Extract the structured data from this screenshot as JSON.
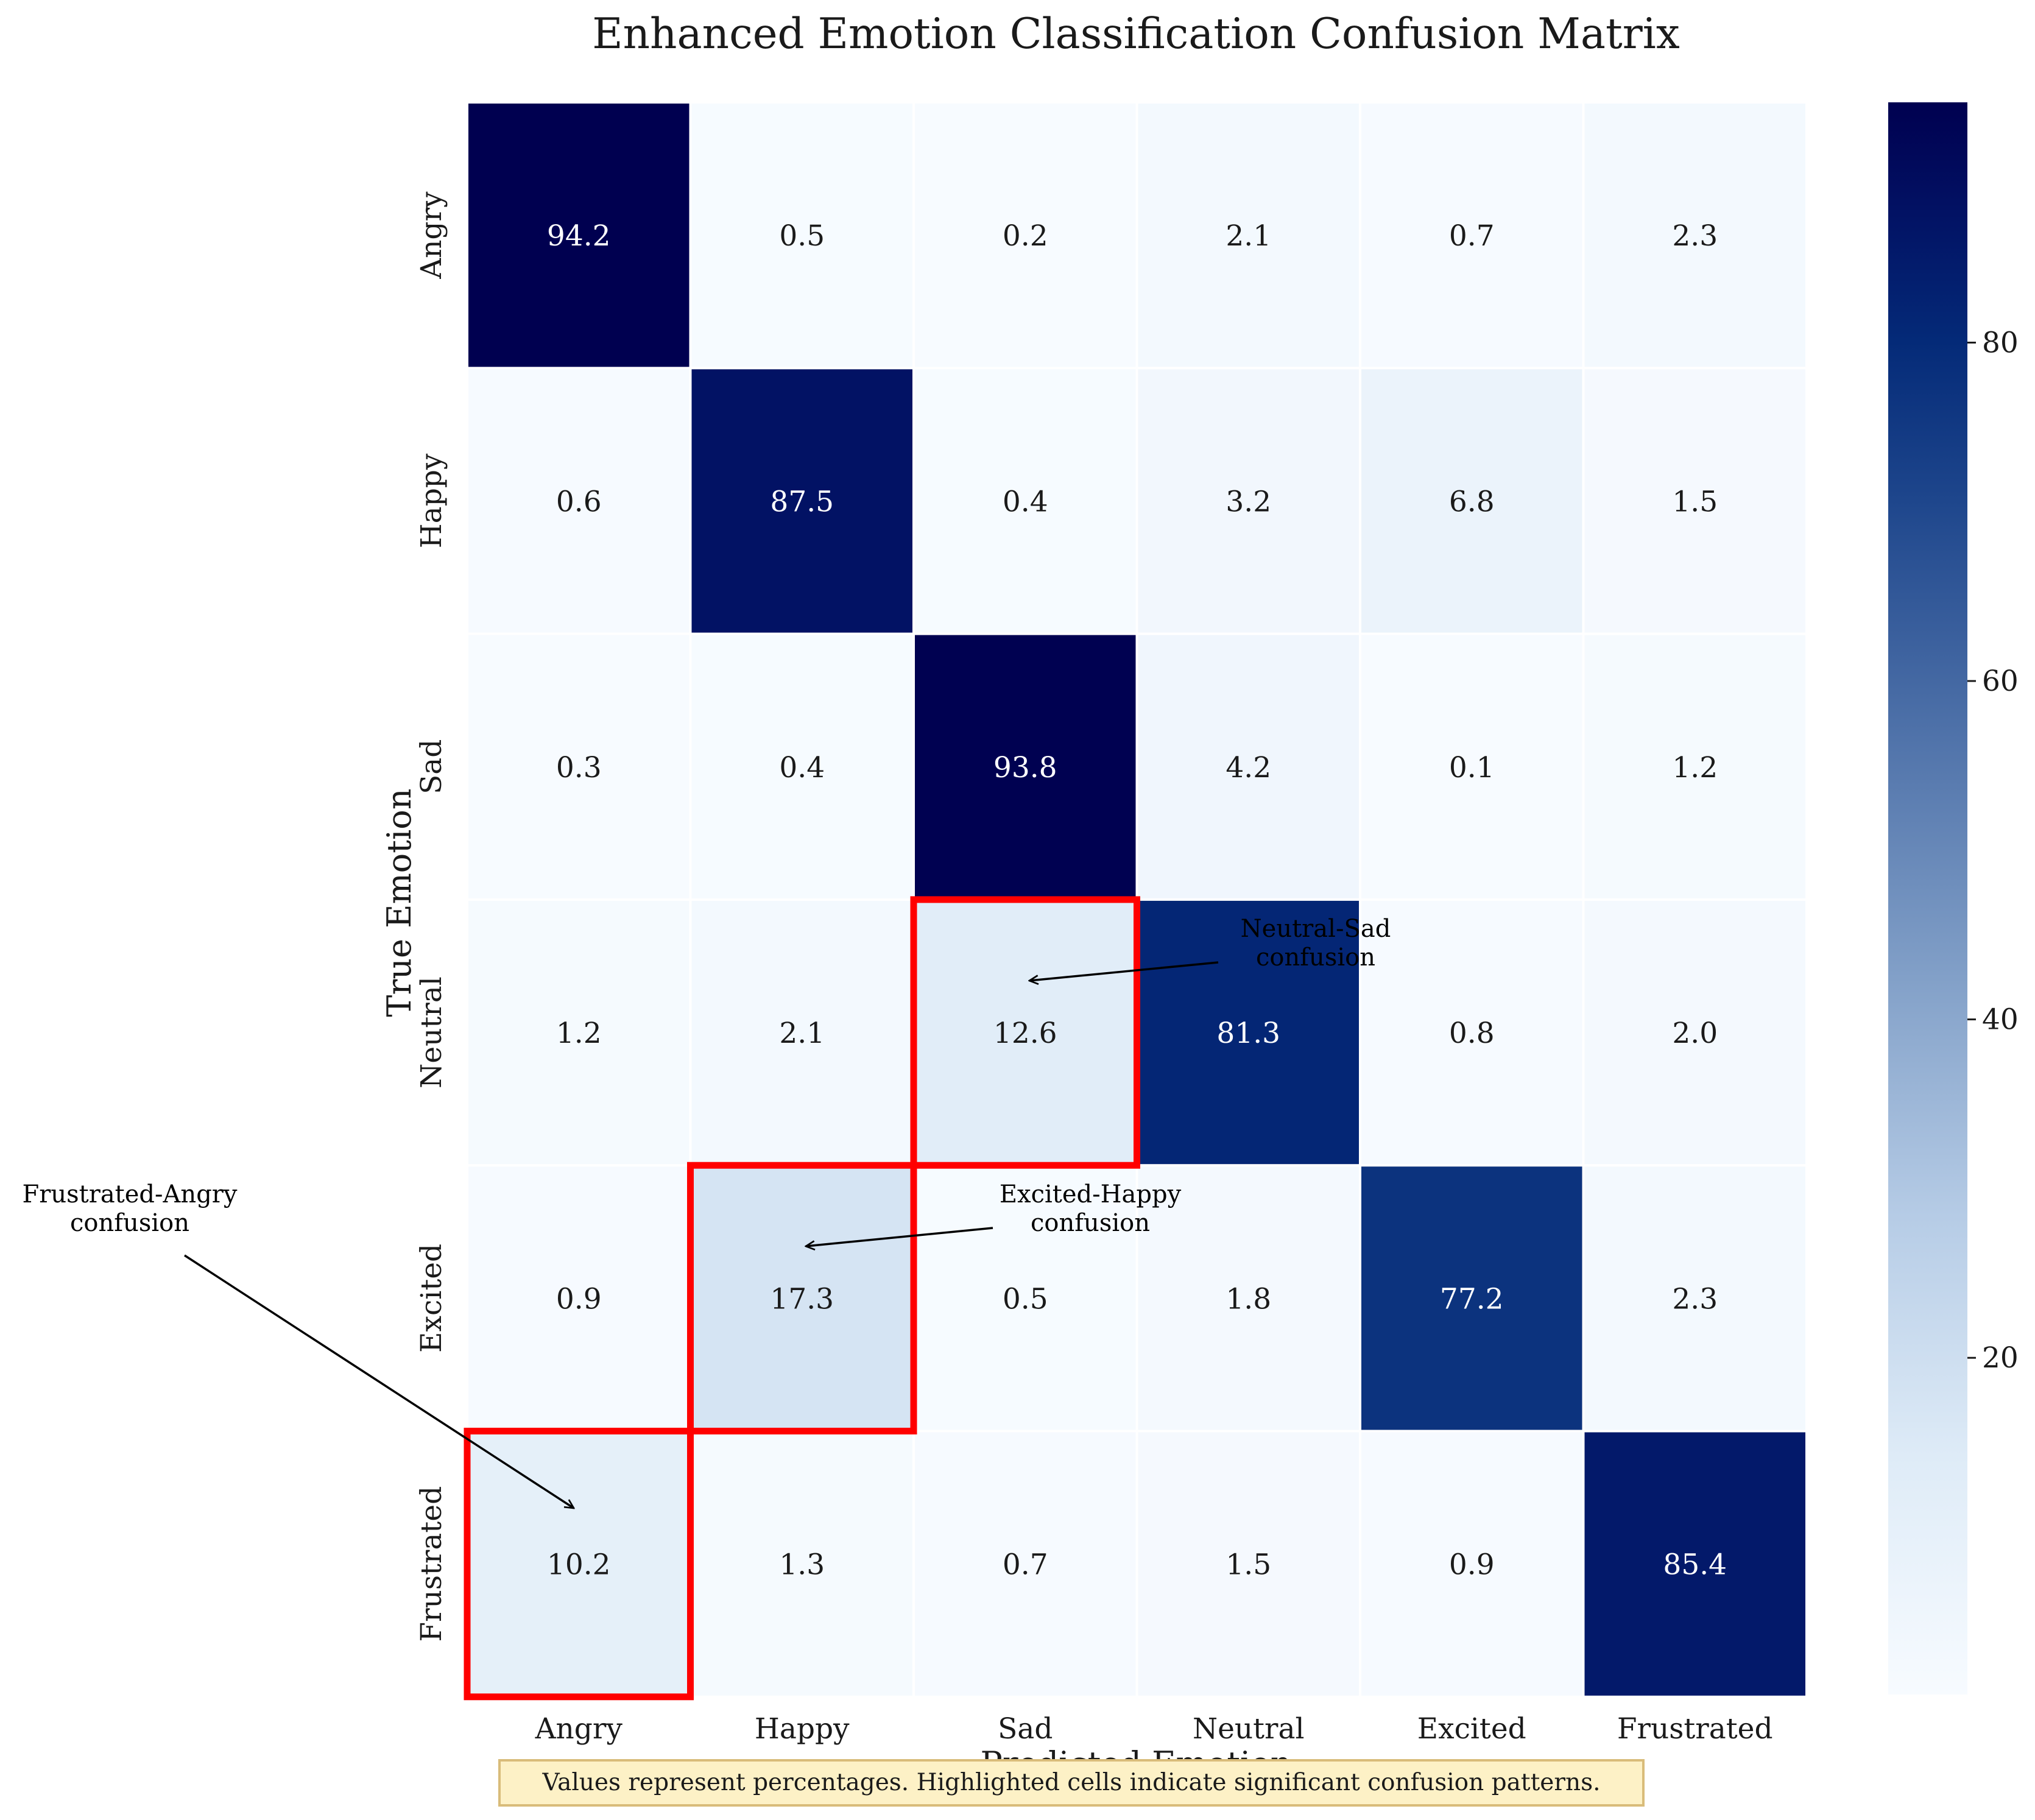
{
  "chart_data": {
    "type": "heatmap",
    "title": "Enhanced Emotion Classification Confusion Matrix",
    "xlabel": "Predicted Emotion",
    "ylabel": "True Emotion",
    "x_categories": [
      "Angry",
      "Happy",
      "Sad",
      "Neutral",
      "Excited",
      "Frustrated"
    ],
    "y_categories": [
      "Angry",
      "Happy",
      "Sad",
      "Neutral",
      "Excited",
      "Frustrated"
    ],
    "values": [
      [
        94.2,
        0.5,
        0.2,
        2.1,
        0.7,
        2.3
      ],
      [
        0.6,
        87.5,
        0.4,
        3.2,
        6.8,
        1.5
      ],
      [
        0.3,
        0.4,
        93.8,
        4.2,
        0.1,
        1.2
      ],
      [
        1.2,
        2.1,
        12.6,
        81.3,
        0.8,
        2.0
      ],
      [
        0.9,
        17.3,
        0.5,
        1.8,
        77.2,
        2.3
      ],
      [
        10.2,
        1.3,
        0.7,
        1.5,
        0.9,
        85.4
      ]
    ],
    "colormap": "Blues",
    "colorbar": {
      "ticks": [
        20,
        40,
        60,
        80
      ],
      "range": [
        0.1,
        94.2
      ]
    },
    "highlighted_cells": [
      {
        "row": "Neutral",
        "col": "Sad"
      },
      {
        "row": "Excited",
        "col": "Happy"
      },
      {
        "row": "Frustrated",
        "col": "Angry"
      }
    ],
    "highlight_color": "#ff0000",
    "annotations": [
      {
        "line1": "Neutral-Sad",
        "line2": "confusion",
        "target_row": "Neutral",
        "target_col": "Sad"
      },
      {
        "line1": "Excited-Happy",
        "line2": "confusion",
        "target_row": "Excited",
        "target_col": "Happy"
      },
      {
        "line1": "Frustrated-Angry",
        "line2": "confusion",
        "target_row": "Frustrated",
        "target_col": "Angry"
      }
    ],
    "footnote": "Values represent percentages. Highlighted cells indicate significant confusion patterns.",
    "footnote_bg": "#fdf1c6",
    "footnote_border": "#d9bc7a"
  }
}
